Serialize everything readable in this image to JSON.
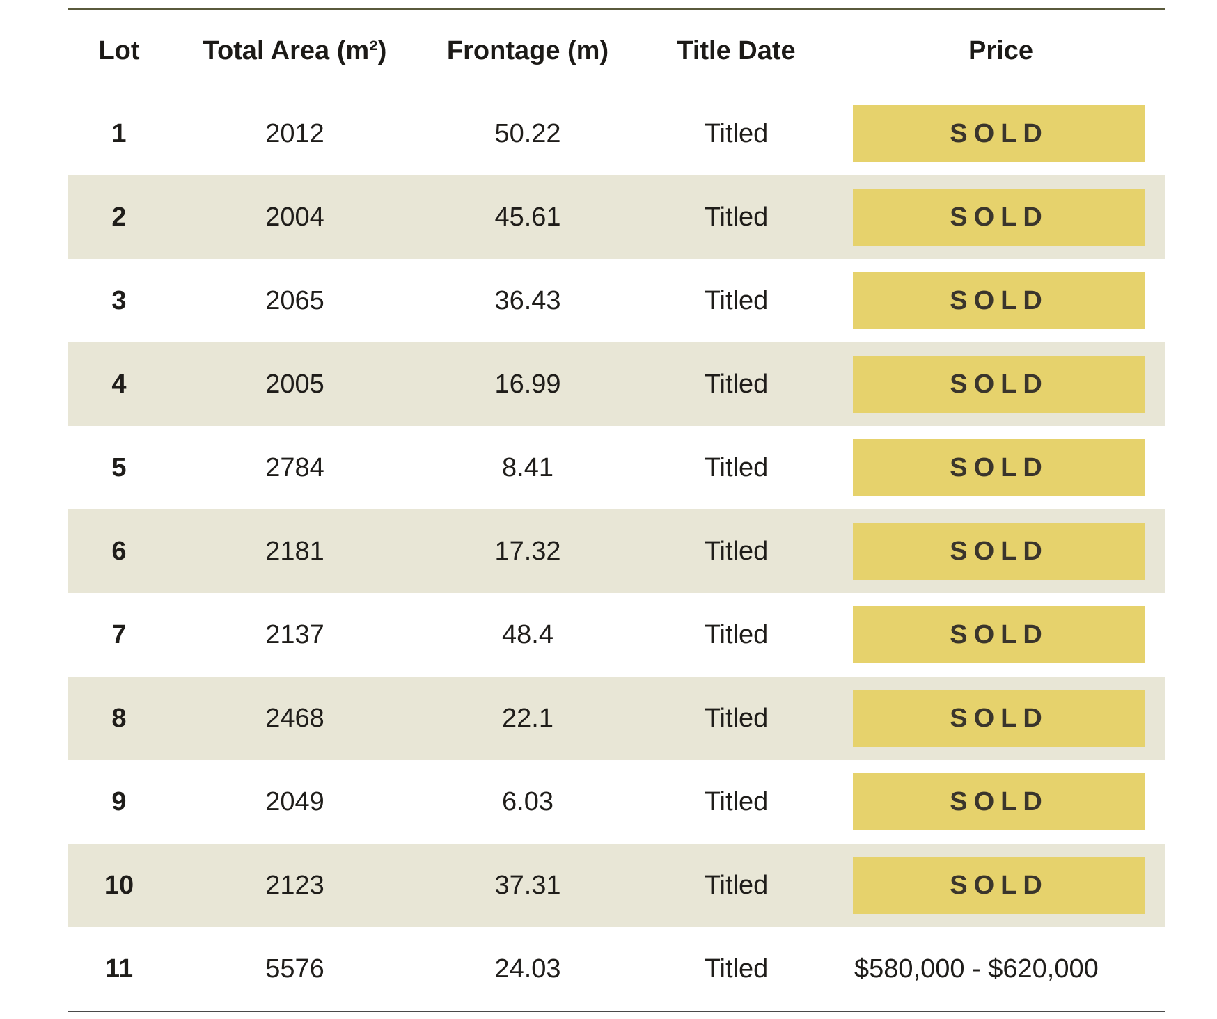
{
  "table": {
    "headers": [
      "Lot",
      "Total Area (m²)",
      "Frontage (m)",
      "Title Date",
      "Price"
    ],
    "rows": [
      {
        "lot": "1",
        "area": "2012",
        "frontage": "50.22",
        "title_date": "Titled",
        "price": "SOLD",
        "sold": true
      },
      {
        "lot": "2",
        "area": "2004",
        "frontage": "45.61",
        "title_date": "Titled",
        "price": "SOLD",
        "sold": true
      },
      {
        "lot": "3",
        "area": "2065",
        "frontage": "36.43",
        "title_date": "Titled",
        "price": "SOLD",
        "sold": true
      },
      {
        "lot": "4",
        "area": "2005",
        "frontage": "16.99",
        "title_date": "Titled",
        "price": "SOLD",
        "sold": true
      },
      {
        "lot": "5",
        "area": "2784",
        "frontage": "8.41",
        "title_date": "Titled",
        "price": "SOLD",
        "sold": true
      },
      {
        "lot": "6",
        "area": "2181",
        "frontage": "17.32",
        "title_date": "Titled",
        "price": "SOLD",
        "sold": true
      },
      {
        "lot": "7",
        "area": "2137",
        "frontage": "48.4",
        "title_date": "Titled",
        "price": "SOLD",
        "sold": true
      },
      {
        "lot": "8",
        "area": "2468",
        "frontage": "22.1",
        "title_date": "Titled",
        "price": "SOLD",
        "sold": true
      },
      {
        "lot": "9",
        "area": "2049",
        "frontage": "6.03",
        "title_date": "Titled",
        "price": "SOLD",
        "sold": true
      },
      {
        "lot": "10",
        "area": "2123",
        "frontage": "37.31",
        "title_date": "Titled",
        "price": "SOLD",
        "sold": true
      },
      {
        "lot": "11",
        "area": "5576",
        "frontage": "24.03",
        "title_date": "Titled",
        "price": "$580,000 - $620,000",
        "sold": false
      }
    ]
  },
  "colors": {
    "sold_badge": "#e6d26c",
    "stripe_row": "#e8e6d6",
    "rule": "#5a5a3c"
  }
}
